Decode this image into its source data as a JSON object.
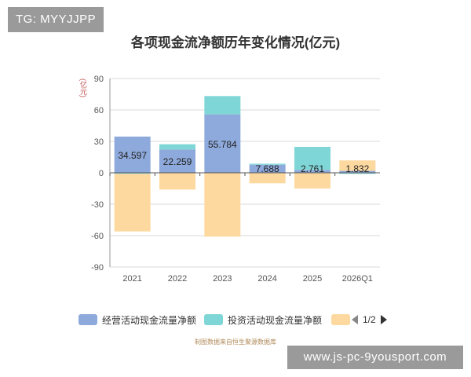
{
  "watermark_top": "TG: MYYJJPP",
  "watermark_bottom": "www.js-pc-9yousport.com",
  "source": "制图数据来自恒生聚源数据库",
  "pager_text": "1/2",
  "colors": {
    "operating": "#8ea9db",
    "investing": "#7fd6d6",
    "financing": "#fdd9a0",
    "axis": "#999999",
    "grid": "#d9d9d9"
  },
  "chart_data": {
    "type": "bar",
    "title": "各项现金流净额历年变化情况(亿元)",
    "unit_label": "(亿元)",
    "categories": [
      "2021",
      "2022",
      "2023",
      "2024",
      "2025",
      "2026Q1"
    ],
    "ylim": [
      -90,
      90
    ],
    "yticks": [
      90,
      60,
      30,
      0,
      -30,
      -60,
      -90
    ],
    "legend_position": "bottom",
    "series": [
      {
        "name": "经营活动现金流量净额",
        "values": [
          34.597,
          22.259,
          55.784,
          7.688,
          2.761,
          1.832
        ],
        "labels": [
          "34.597",
          "22.259",
          "55.784",
          "7.688",
          "2.761",
          "1.832"
        ]
      },
      {
        "name": "投资活动现金流量净额",
        "values": [
          -1,
          5,
          17.5,
          1,
          22,
          -1
        ]
      },
      {
        "name": "",
        "values": [
          -55,
          -16,
          -61,
          -10,
          -15,
          10
        ]
      }
    ]
  }
}
